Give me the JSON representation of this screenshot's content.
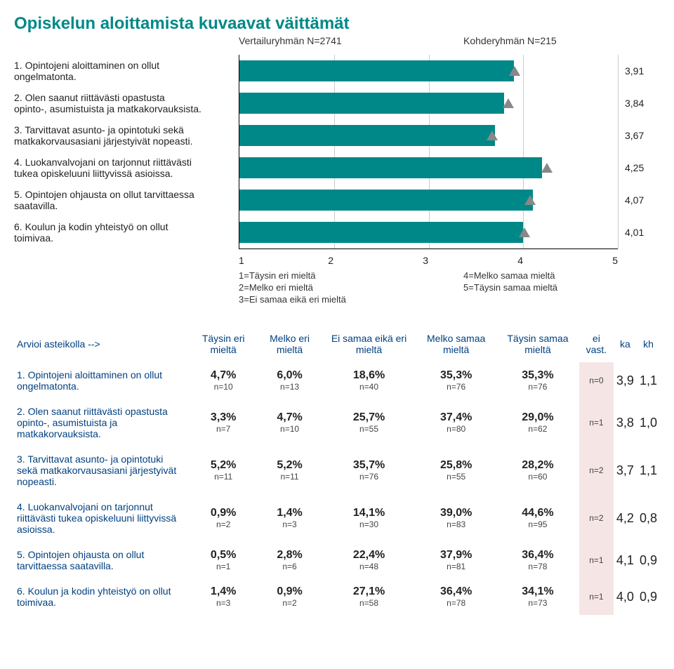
{
  "title": "Opiskelun aloittamista kuvaavat väittämät",
  "subtitle_left": "Vertailuryhmän N=2741",
  "subtitle_right": "Kohderyhmän N=215",
  "chart": {
    "type": "bar",
    "xmin": 1,
    "xmax": 5,
    "bar_color": "#008888",
    "marker_color": "#888888",
    "grid_color": "#cccccc",
    "items": [
      {
        "label_l1": "1. Opintojeni aloittaminen on ollut",
        "label_l2": "ongelmatonta.",
        "bar": 3.9,
        "marker": 3.91,
        "display": "3,91"
      },
      {
        "label_l1": "2. Olen saanut riittävästi opastusta",
        "label_l2": "opinto-, asumistuista ja matkakorvauksista.",
        "bar": 3.8,
        "marker": 3.84,
        "display": "3,84"
      },
      {
        "label_l1": "3. Tarvittavat asunto- ja opintotuki sekä",
        "label_l2": "matkakorvausasiani järjestyivät nopeasti.",
        "bar": 3.7,
        "marker": 3.67,
        "display": "3,67"
      },
      {
        "label_l1": "4. Luokanvalvojani on tarjonnut riittävästi",
        "label_l2": "tukea opiskeluuni liittyvissä asioissa.",
        "bar": 4.2,
        "marker": 4.25,
        "display": "4,25"
      },
      {
        "label_l1": "5. Opintojen ohjausta on ollut tarvittaessa",
        "label_l2": "saatavilla.",
        "bar": 4.1,
        "marker": 4.07,
        "display": "4,07"
      },
      {
        "label_l1": "6. Koulun ja kodin yhteistyö on ollut",
        "label_l2": "toimivaa.",
        "bar": 4.0,
        "marker": 4.01,
        "display": "4,01"
      }
    ],
    "x_ticks": [
      "1",
      "2",
      "3",
      "4",
      "5"
    ],
    "legend": {
      "left": [
        "1=Täysin eri mieltä",
        "2=Melko eri mieltä",
        "3=Ei samaa eikä eri mieltä"
      ],
      "right": [
        "4=Melko samaa mieltä",
        "5=Täysin samaa mieltä"
      ]
    }
  },
  "table": {
    "header_label": "Arvioi asteikolla -->",
    "columns": [
      "Täysin eri mieltä",
      "Melko eri mieltä",
      "Ei samaa eikä eri mieltä",
      "Melko samaa mieltä",
      "Täysin samaa mieltä",
      "ei vast.",
      "ka",
      "kh"
    ],
    "rows": [
      {
        "label": "1. Opintojeni aloittaminen on ollut ongelmatonta.",
        "cells": [
          "4,7%",
          "6,0%",
          "18,6%",
          "35,3%",
          "35,3%"
        ],
        "ns": [
          "n=10",
          "n=13",
          "n=40",
          "n=76",
          "n=76"
        ],
        "eivast": "n=0",
        "ka": "3,9",
        "kh": "1,1"
      },
      {
        "label": "2. Olen saanut riittävästi opastusta opinto-, asumistuista ja matkakorvauksista.",
        "cells": [
          "3,3%",
          "4,7%",
          "25,7%",
          "37,4%",
          "29,0%"
        ],
        "ns": [
          "n=7",
          "n=10",
          "n=55",
          "n=80",
          "n=62"
        ],
        "eivast": "n=1",
        "ka": "3,8",
        "kh": "1,0"
      },
      {
        "label": "3. Tarvittavat asunto- ja opintotuki sekä matkakorvausasiani järjestyivät nopeasti.",
        "cells": [
          "5,2%",
          "5,2%",
          "35,7%",
          "25,8%",
          "28,2%"
        ],
        "ns": [
          "n=11",
          "n=11",
          "n=76",
          "n=55",
          "n=60"
        ],
        "eivast": "n=2",
        "ka": "3,7",
        "kh": "1,1"
      },
      {
        "label": "4. Luokanvalvojani on tarjonnut riittävästi tukea opiskeluuni liittyvissä asioissa.",
        "cells": [
          "0,9%",
          "1,4%",
          "14,1%",
          "39,0%",
          "44,6%"
        ],
        "ns": [
          "n=2",
          "n=3",
          "n=30",
          "n=83",
          "n=95"
        ],
        "eivast": "n=2",
        "ka": "4,2",
        "kh": "0,8"
      },
      {
        "label": "5. Opintojen ohjausta on ollut tarvittaessa saatavilla.",
        "cells": [
          "0,5%",
          "2,8%",
          "22,4%",
          "37,9%",
          "36,4%"
        ],
        "ns": [
          "n=1",
          "n=6",
          "n=48",
          "n=81",
          "n=78"
        ],
        "eivast": "n=1",
        "ka": "4,1",
        "kh": "0,9"
      },
      {
        "label": "6. Koulun ja kodin yhteistyö on ollut toimivaa.",
        "cells": [
          "1,4%",
          "0,9%",
          "27,1%",
          "36,4%",
          "34,1%"
        ],
        "ns": [
          "n=3",
          "n=2",
          "n=58",
          "n=78",
          "n=73"
        ],
        "eivast": "n=1",
        "ka": "4,0",
        "kh": "0,9"
      }
    ]
  }
}
